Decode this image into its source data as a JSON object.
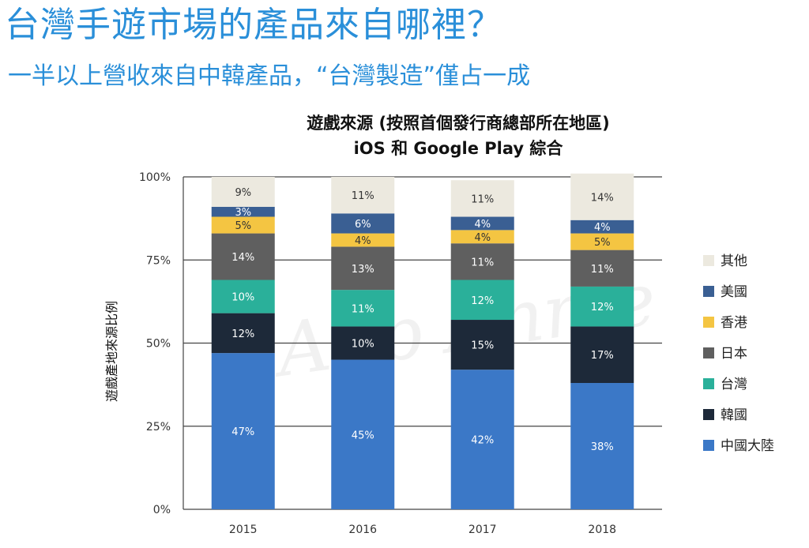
{
  "headline": "台灣手遊市場的產品來自哪裡？",
  "subheadline": "一半以上營收來自中韓產品，“台灣製造”僅占一成",
  "watermark": "App Annie",
  "chart_data": {
    "type": "bar",
    "stacked": true,
    "title_line1": "遊戲來源 (按照首個發行商總部所在地區)",
    "title_line2": "iOS 和 Google Play 綜合",
    "xlabel": "",
    "ylabel": "遊戲產地來源比例",
    "ylim": [
      0,
      100
    ],
    "yticks": [
      "0%",
      "25%",
      "50%",
      "75%",
      "100%"
    ],
    "grid": true,
    "legend_position": "right",
    "categories": [
      "2015",
      "2016",
      "2017",
      "2018"
    ],
    "series": [
      {
        "name": "中國大陸",
        "color": "#3b78c7",
        "text_color": "#ffffff",
        "values": [
          47,
          45,
          42,
          38
        ]
      },
      {
        "name": "韓國",
        "color": "#1d2939",
        "text_color": "#ffffff",
        "values": [
          12,
          10,
          15,
          17
        ]
      },
      {
        "name": "台灣",
        "color": "#2ab09a",
        "text_color": "#ffffff",
        "values": [
          10,
          11,
          12,
          12
        ]
      },
      {
        "name": "日本",
        "color": "#5f5f5f",
        "text_color": "#ffffff",
        "values": [
          14,
          13,
          11,
          11
        ]
      },
      {
        "name": "香港",
        "color": "#f4c542",
        "text_color": "#333333",
        "values": [
          5,
          4,
          4,
          5
        ]
      },
      {
        "name": "美國",
        "color": "#3a5f93",
        "text_color": "#ffffff",
        "values": [
          3,
          6,
          4,
          4
        ]
      },
      {
        "name": "其他",
        "color": "#ece9df",
        "text_color": "#333333",
        "values": [
          9,
          11,
          11,
          14
        ]
      }
    ]
  }
}
